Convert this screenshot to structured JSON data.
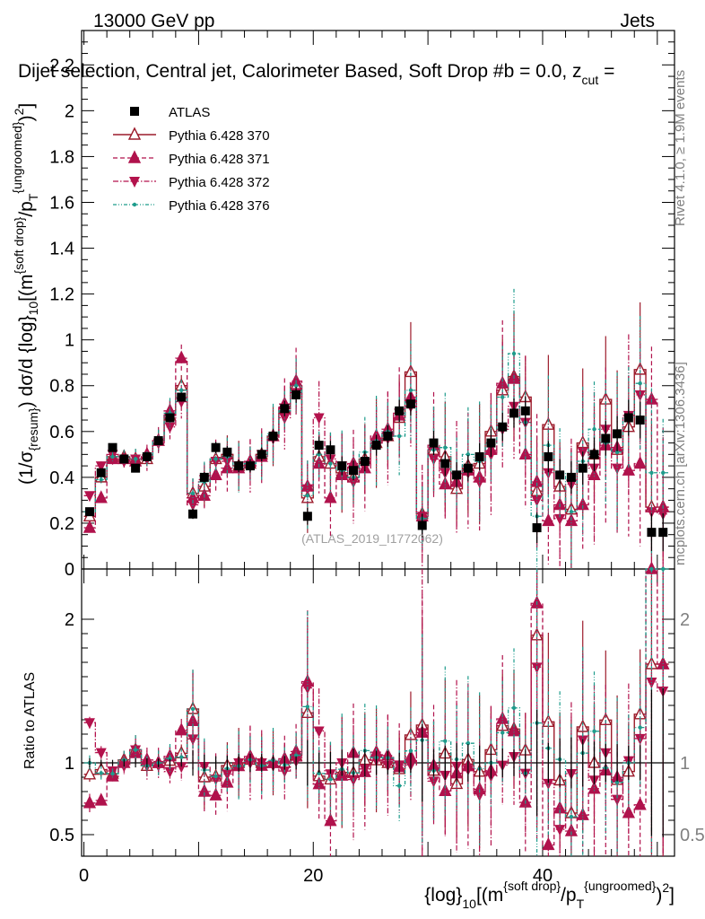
{
  "header": {
    "left": "13000 GeV pp",
    "right": "Jets",
    "title": "Dijet selection, Central jet, Calorimeter Based, Soft Drop #b = 0.0, z",
    "title_cut_sub": "cut",
    "title_tail": " ="
  },
  "side_labels": {
    "rivet": "Rivet 4.1.0, ≥ 1.9M events",
    "mcplots": "mcplots.cern.ch [arXiv:1306.3436]"
  },
  "watermark": "(ATLAS_2019_I1772062)",
  "axes": {
    "ylabel_main": "(1/σ{resum}) dσ/d {log}10[(m{soft drop}/pT{ungroomed})2]",
    "ylabel_ratio": "Ratio to ATLAS",
    "xlabel": "{log}10[(m{soft drop}/pT{ungroomed})2]"
  },
  "colors": {
    "data": "#000000",
    "s370": "#9c1b2b",
    "s371": "#b0124c",
    "s372": "#b3124c",
    "s376": "#1e9c8c"
  },
  "chart_data": {
    "type": "scatter",
    "title": "Dijet selection, Central jet, Calorimeter Based, Soft Drop #b = 0.0, z_cut =",
    "xlabel": "{log}10[(m{soft drop}/pT{ungroomed})2]",
    "ylabel": "(1/σ{resum}) dσ/d {log}10[(m{soft drop}/pT{ungroomed})2]",
    "xlim": [
      -0.2,
      51.5
    ],
    "ylim": [
      0,
      2.35
    ],
    "ratio_ylim": [
      0.35,
      2.35
    ],
    "x_ticks": [
      0,
      20,
      40
    ],
    "y_ticks": [
      0,
      0.2,
      0.4,
      0.6,
      0.8,
      1,
      1.2,
      1.4,
      1.6,
      1.8,
      2,
      2.2
    ],
    "ratio_ticks": [
      0.5,
      1,
      2
    ],
    "x": [
      0.5,
      1.5,
      2.5,
      3.5,
      4.5,
      5.5,
      6.5,
      7.5,
      8.5,
      9.5,
      10.5,
      11.5,
      12.5,
      13.5,
      14.5,
      15.5,
      16.5,
      17.5,
      18.5,
      19.5,
      20.5,
      21.5,
      22.5,
      23.5,
      24.5,
      25.5,
      26.5,
      27.5,
      28.5,
      29.5,
      30.5,
      31.5,
      32.5,
      33.5,
      34.5,
      35.5,
      36.5,
      37.5,
      38.5,
      39.5,
      40.5,
      41.5,
      42.5,
      43.5,
      44.5,
      45.5,
      46.5,
      47.5,
      48.5,
      49.5,
      50.5
    ],
    "series": [
      {
        "name": "ATLAS",
        "marker": "square",
        "values": [
          0.25,
          0.42,
          0.53,
          0.48,
          0.44,
          0.49,
          0.56,
          0.66,
          0.75,
          0.24,
          0.4,
          0.53,
          0.51,
          0.45,
          0.45,
          0.5,
          0.58,
          0.7,
          0.76,
          0.23,
          0.54,
          0.52,
          0.45,
          0.43,
          0.47,
          0.54,
          0.58,
          0.69,
          0.72,
          0.19,
          0.55,
          0.46,
          0.41,
          0.44,
          0.49,
          0.55,
          0.62,
          0.68,
          0.69,
          0.18,
          0.49,
          0.41,
          0.4,
          0.44,
          0.5,
          0.57,
          0.59,
          0.66,
          0.65,
          0.16,
          0.16
        ]
      },
      {
        "name": "Pythia 6.428 370",
        "marker": "triangle-up-open",
        "values": [
          0.23,
          0.4,
          0.49,
          0.49,
          0.48,
          0.48,
          0.56,
          0.67,
          0.8,
          0.33,
          0.36,
          0.48,
          0.5,
          0.45,
          0.46,
          0.5,
          0.58,
          0.7,
          0.8,
          0.31,
          0.49,
          0.46,
          0.42,
          0.4,
          0.48,
          0.55,
          0.58,
          0.66,
          0.86,
          0.24,
          0.52,
          0.49,
          0.35,
          0.45,
          0.46,
          0.6,
          0.78,
          0.84,
          0.75,
          0.34,
          0.63,
          0.36,
          0.26,
          0.55,
          0.5,
          0.74,
          0.52,
          0.62,
          0.87,
          0.27,
          0.27
        ]
      },
      {
        "name": "Pythia 6.428 371",
        "marker": "triangle-up",
        "values": [
          0.18,
          0.31,
          0.48,
          0.48,
          0.47,
          0.5,
          0.56,
          0.69,
          0.92,
          0.31,
          0.32,
          0.41,
          0.44,
          0.44,
          0.47,
          0.49,
          0.58,
          0.72,
          0.82,
          0.36,
          0.46,
          0.31,
          0.41,
          0.46,
          0.44,
          0.58,
          0.61,
          0.67,
          0.75,
          0.23,
          0.54,
          0.37,
          0.38,
          0.43,
          0.4,
          0.52,
          0.81,
          0.83,
          0.5,
          0.38,
          0.21,
          0.28,
          0.21,
          0.28,
          0.41,
          0.54,
          0.53,
          0.43,
          0.46,
          0.74,
          0.27
        ]
      },
      {
        "name": "Pythia 6.428 372",
        "marker": "triangle-down",
        "values": [
          0.32,
          0.45,
          0.5,
          0.47,
          0.48,
          0.48,
          0.55,
          0.62,
          0.73,
          0.28,
          0.39,
          0.47,
          0.47,
          0.45,
          0.45,
          0.5,
          0.57,
          0.66,
          0.77,
          0.35,
          0.66,
          0.48,
          0.45,
          0.38,
          0.45,
          0.55,
          0.57,
          0.68,
          0.71,
          0.23,
          0.48,
          0.42,
          0.4,
          0.42,
          0.38,
          0.5,
          0.61,
          0.71,
          0.64,
          0.3,
          0.42,
          0.22,
          0.37,
          0.51,
          0.44,
          0.61,
          0.44,
          0.67,
          0.76,
          0.25,
          0.24
        ]
      },
      {
        "name": "Pythia 6.428 376",
        "marker": "star",
        "values": [
          0.25,
          0.39,
          0.49,
          0.49,
          0.48,
          0.48,
          0.56,
          0.68,
          0.78,
          0.33,
          0.38,
          0.48,
          0.49,
          0.44,
          0.46,
          0.49,
          0.59,
          0.69,
          0.8,
          0.32,
          0.5,
          0.46,
          0.43,
          0.4,
          0.51,
          0.56,
          0.6,
          0.58,
          0.78,
          0.22,
          0.52,
          0.53,
          0.42,
          0.5,
          0.47,
          0.55,
          0.75,
          0.94,
          0.64,
          0.23,
          0.54,
          0.42,
          0.25,
          0.47,
          0.61,
          0.55,
          0.51,
          0.66,
          0.81,
          0.42,
          0.42
        ]
      }
    ]
  }
}
